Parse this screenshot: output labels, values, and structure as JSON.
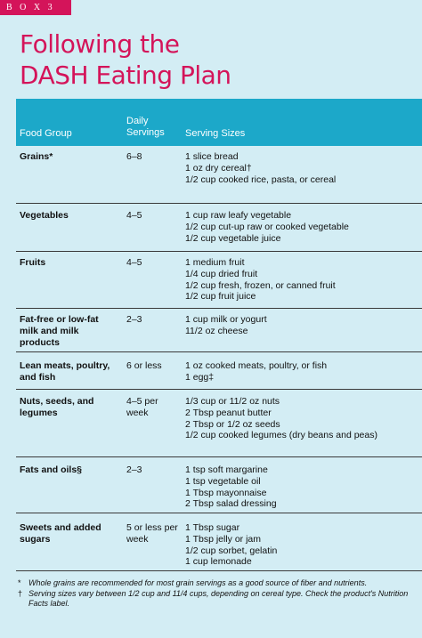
{
  "box_label": "B O X   3",
  "title_line1": "Following the",
  "title_line2": "DASH Eating Plan",
  "columns": {
    "food_group": "Food Group",
    "daily_line1": "Daily",
    "daily_line2": "Servings",
    "serving_sizes": "Serving Sizes"
  },
  "rows": [
    {
      "group": "Grains*",
      "servings": "6–8",
      "sizes": [
        "1 slice bread",
        "1 oz dry cereal†",
        "1/2 cup cooked rice, pasta, or cereal"
      ]
    },
    {
      "group": "Vegetables",
      "servings": "4–5",
      "sizes": [
        "1 cup raw leafy vegetable",
        "1/2 cup cut-up raw or cooked vegetable",
        "1/2 cup vegetable juice"
      ]
    },
    {
      "group": "Fruits",
      "servings": "4–5",
      "sizes": [
        "1 medium fruit",
        "1/4 cup dried fruit",
        "1/2 cup fresh, frozen, or canned fruit",
        "1/2 cup fruit juice"
      ]
    },
    {
      "group": "Fat-free or low-fat milk and milk products",
      "servings": "2–3",
      "sizes": [
        "1 cup milk or yogurt",
        "11/2 oz cheese"
      ]
    },
    {
      "group": "Lean meats, poultry, and fish",
      "servings": "6 or less",
      "sizes": [
        "1 oz cooked meats, poultry, or fish",
        "1 egg‡"
      ]
    },
    {
      "group": "Nuts, seeds, and legumes",
      "servings": "4–5 per week",
      "sizes": [
        "1/3 cup or 11/2 oz nuts",
        "2 Tbsp peanut butter",
        "2 Tbsp or 1/2 oz seeds",
        "1/2 cup cooked legumes (dry beans and peas)"
      ]
    },
    {
      "group": "Fats and oils§",
      "servings": "2–3",
      "sizes": [
        "1 tsp soft margarine",
        "1 tsp vegetable oil",
        "1 Tbsp mayonnaise",
        "2 Tbsp salad dressing"
      ]
    },
    {
      "group": "Sweets and added sugars",
      "servings": "5 or less per week",
      "sizes": [
        "1 Tbsp sugar",
        "1 Tbsp jelly or jam",
        "1/2 cup sorbet, gelatin",
        "1 cup lemonade"
      ]
    }
  ],
  "footnotes": [
    {
      "mark": "*",
      "text": "Whole grains are recommended for most grain servings as a good source of fiber and nutrients."
    },
    {
      "mark": "†",
      "text": "Serving sizes vary between 1/2 cup and 11/4 cups, depending on cereal type. Check the product's Nutrition Facts label."
    }
  ],
  "colors": {
    "accent": "#d4145a",
    "header": "#1ca8c9",
    "background": "#d3edf4"
  }
}
